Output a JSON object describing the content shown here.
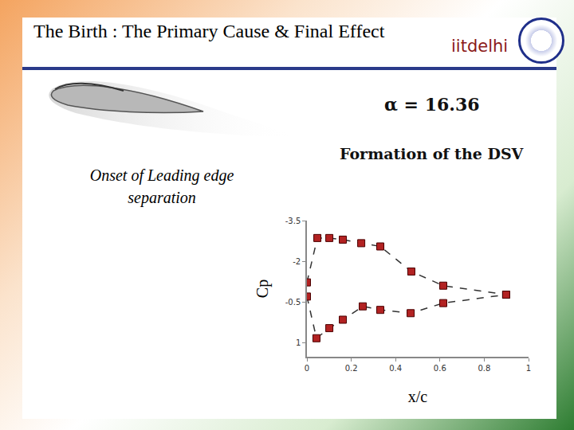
{
  "chart_data": {
    "type": "scatter",
    "title": "The Birth : The Primary Cause & Final Effect",
    "logo_text": "iitdelhi",
    "annotations": [
      "α = 16.36",
      "Formation of the DSV",
      "Onset of Leading edge separation"
    ],
    "x_label": "x/c",
    "y_label": "Cp",
    "xlim": [
      0,
      1
    ],
    "xticks": [
      0,
      0.2,
      0.4,
      0.6,
      0.8,
      1
    ],
    "ylim": [
      1.5,
      -3.5
    ],
    "yticks": [
      -3.5,
      -2,
      -0.5,
      1
    ],
    "grid": false,
    "marker": "square",
    "line_style": "dash",
    "color": "#b22222",
    "series": [
      {
        "x": [
          0,
          0.047,
          0.101,
          0.162,
          0.245,
          0.331,
          0.471,
          0.615,
          0.899
        ],
        "values": [
          -1.23,
          -2.86,
          -2.86,
          -2.8,
          -2.67,
          -2.55,
          -1.63,
          -1.11,
          -0.78
        ]
      },
      {
        "x": [
          0,
          0.043,
          0.101,
          0.162,
          0.252,
          0.331,
          0.468,
          0.615,
          0.899
        ],
        "values": [
          -0.71,
          0.82,
          0.45,
          0.14,
          -0.35,
          -0.22,
          -0.1,
          -0.47,
          -0.78
        ]
      }
    ]
  }
}
